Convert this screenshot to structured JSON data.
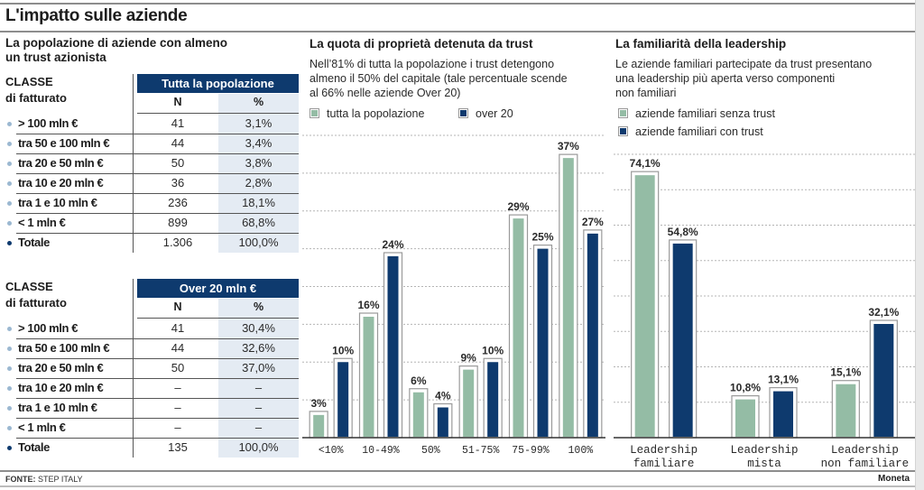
{
  "title": "L'impatto sulle aziende",
  "colors": {
    "navy": "#0e3a6e",
    "green": "#94bca5",
    "pct_col_bg": "#e4ebf3",
    "dot_light": "#9bb8d1"
  },
  "left_panel": {
    "title_line1": "La popolazione di aziende con almeno",
    "title_line2": "un trust azionista",
    "tables": [
      {
        "classe_line1": "CLASSE",
        "classe_line2": "di fatturato",
        "header": "Tutta la popolazione",
        "col_n": "N",
        "col_pct": "%",
        "rows": [
          {
            "label": "> 100 mln €",
            "n": "41",
            "pct": "3,1%"
          },
          {
            "label": "tra 50 e 100 mln €",
            "n": "44",
            "pct": "3,4%"
          },
          {
            "label": "tra 20 e 50 mln €",
            "n": "50",
            "pct": "3,8%"
          },
          {
            "label": "tra 10 e 20 mln €",
            "n": "36",
            "pct": "2,8%"
          },
          {
            "label": "tra 1 e 10 mln €",
            "n": "236",
            "pct": "18,1%"
          },
          {
            "label": "< 1 mln €",
            "n": "899",
            "pct": "68,8%"
          },
          {
            "label": "Totale",
            "n": "1.306",
            "pct": "100,0%"
          }
        ]
      },
      {
        "classe_line1": "CLASSE",
        "classe_line2": "di fatturato",
        "header": "Over 20 mln €",
        "col_n": "N",
        "col_pct": "%",
        "rows": [
          {
            "label": "> 100 mln €",
            "n": "41",
            "pct": "30,4%"
          },
          {
            "label": "tra 50 e 100 mln €",
            "n": "44",
            "pct": "32,6%"
          },
          {
            "label": "tra 20 e 50 mln €",
            "n": "50",
            "pct": "37,0%"
          },
          {
            "label": "tra 10 e 20 mln €",
            "n": "–",
            "pct": "–"
          },
          {
            "label": "tra 1 e 10 mln €",
            "n": "–",
            "pct": "–"
          },
          {
            "label": "< 1 mln €",
            "n": "–",
            "pct": "–"
          },
          {
            "label": "Totale",
            "n": "135",
            "pct": "100,0%"
          }
        ]
      }
    ]
  },
  "middle_panel": {
    "title": "La quota di proprietà detenuta da trust",
    "desc_line1": "Nell’81% di tutta la popolazione i trust detengono",
    "desc_line2": "almeno il 50% del capitale (tale percentuale scende",
    "desc_line3": "al 66% nelle aziende Over 20)"
  },
  "right_panel": {
    "title": "La familiarità della leadership",
    "desc_line1": "Le aziende familiari partecipate da trust presentano",
    "desc_line2": "una leadership più aperta verso componenti",
    "desc_line3": "non familiari"
  },
  "footer": {
    "source_label": "FONTE:",
    "source_value": "STEP ITALY",
    "brand": "Moneta"
  },
  "chart_data": [
    {
      "type": "bar",
      "title": "La quota di proprietà detenuta da trust",
      "categories": [
        "<10%",
        "10-49%",
        "50%",
        "51-75%",
        "75-99%",
        "100%"
      ],
      "series": [
        {
          "name": "tutta la popolazione",
          "color": "#94bca5",
          "values": [
            3,
            16,
            6,
            9,
            29,
            37
          ],
          "labels": [
            "3%",
            "16%",
            "6%",
            "9%",
            "29%",
            "37%"
          ]
        },
        {
          "name": "over 20",
          "color": "#0e3a6e",
          "values": [
            10,
            24,
            4,
            10,
            25,
            27
          ],
          "labels": [
            "10%",
            "24%",
            "4%",
            "10%",
            "25%",
            "27%"
          ]
        }
      ],
      "xlabel": "",
      "ylabel": "",
      "ylim": [
        0,
        40
      ],
      "grid_step": 5,
      "grid": true,
      "legend": "top-left"
    },
    {
      "type": "bar",
      "title": "La familiarità della leadership",
      "categories": [
        [
          "Leadership",
          "familiare"
        ],
        [
          "Leadership",
          "mista"
        ],
        [
          "Leadership",
          "non familiare"
        ]
      ],
      "series": [
        {
          "name": "aziende familiari senza trust",
          "color": "#94bca5",
          "values": [
            74.1,
            10.8,
            15.1
          ],
          "labels": [
            "74,1%",
            "10,8%",
            "15,1%"
          ]
        },
        {
          "name": "aziende familiari con trust",
          "color": "#0e3a6e",
          "values": [
            54.8,
            13.1,
            32.1
          ],
          "labels": [
            "54,8%",
            "13,1%",
            "32,1%"
          ]
        }
      ],
      "xlabel": "",
      "ylabel": "",
      "ylim": [
        0,
        80
      ],
      "grid_step": 10,
      "grid": true,
      "legend": "top-left"
    }
  ]
}
